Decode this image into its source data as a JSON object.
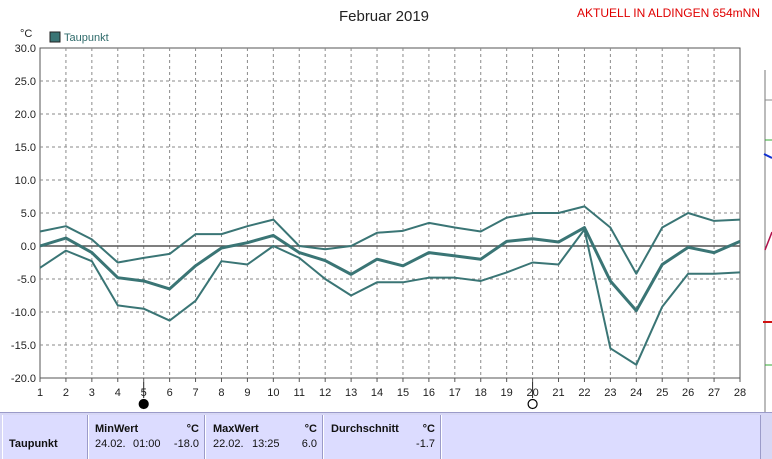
{
  "header": {
    "title": "Februar 2019",
    "station_label": "AKTUELL IN ALDINGEN 654mNN",
    "unit_label": "°C"
  },
  "legend": {
    "label": "Taupunkt",
    "color": "#3a7575"
  },
  "chart_data": {
    "type": "line",
    "title": "Februar 2019",
    "xlabel": "",
    "ylabel": "°C",
    "ylim": [
      -20,
      30
    ],
    "xlim": [
      1,
      28
    ],
    "y_ticks": [
      "30.0",
      "25.0",
      "20.0",
      "15.0",
      "10.0",
      "5.0",
      "0.0",
      "-5.0",
      "-10.0",
      "-15.0",
      "-20.0"
    ],
    "x": [
      1,
      2,
      3,
      4,
      5,
      6,
      7,
      8,
      9,
      10,
      11,
      12,
      13,
      14,
      15,
      16,
      17,
      18,
      19,
      20,
      21,
      22,
      23,
      24,
      25,
      26,
      27,
      28
    ],
    "grid": true,
    "legend_position": "top-left",
    "series": [
      {
        "name": "Taupunkt",
        "role": "max",
        "values": [
          2.2,
          3.0,
          1.0,
          -2.5,
          -1.8,
          -1.2,
          1.8,
          1.8,
          3.0,
          4.0,
          0.0,
          -0.5,
          0.0,
          2.0,
          2.3,
          3.5,
          2.8,
          2.2,
          4.3,
          5.0,
          5.0,
          6.0,
          2.8,
          -4.2,
          2.8,
          5.0,
          3.8,
          4.0
        ]
      },
      {
        "name": "Taupunkt",
        "role": "mean",
        "values": [
          0.0,
          1.2,
          -1.0,
          -4.8,
          -5.3,
          -6.5,
          -3.0,
          -0.3,
          0.5,
          1.6,
          -1.0,
          -2.2,
          -4.3,
          -2.0,
          -3.0,
          -1.0,
          -1.5,
          -2.0,
          0.7,
          1.1,
          0.6,
          2.8,
          -5.3,
          -9.8,
          -2.8,
          -0.2,
          -1.0,
          0.7
        ]
      },
      {
        "name": "Taupunkt",
        "role": "min",
        "values": [
          -3.3,
          -0.7,
          -2.3,
          -9.0,
          -9.5,
          -11.3,
          -8.3,
          -2.3,
          -2.8,
          0.0,
          -1.8,
          -5.0,
          -7.5,
          -5.5,
          -5.5,
          -4.8,
          -4.8,
          -5.3,
          -4.0,
          -2.5,
          -2.8,
          2.5,
          -15.5,
          -18.0,
          -9.2,
          -4.2,
          -4.2,
          -4.0
        ]
      }
    ],
    "markers": [
      {
        "day": 5,
        "type": "full-moon"
      },
      {
        "day": 20,
        "type": "new-moon"
      }
    ]
  },
  "stats": {
    "row_label": "Taupunkt",
    "min": {
      "header": "MinWert",
      "unit": "°C",
      "date": "24.02.",
      "time": "01:00",
      "value": "-18.0"
    },
    "max": {
      "header": "MaxWert",
      "unit": "°C",
      "date": "22.02.",
      "time": "13:25",
      "value": "6.0"
    },
    "avg": {
      "header": "Durchschnitt",
      "unit": "°C",
      "value": "-1.7"
    }
  }
}
